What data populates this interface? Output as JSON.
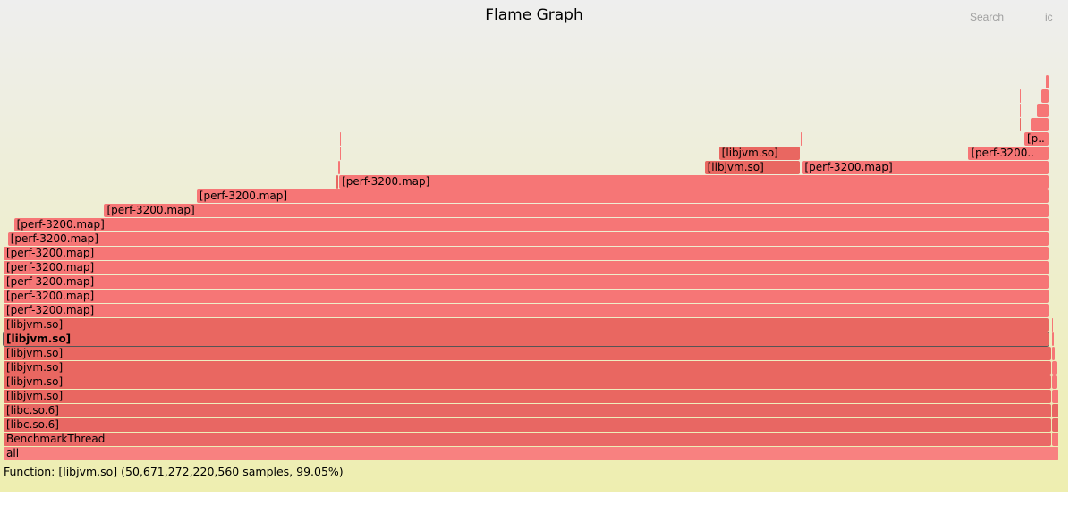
{
  "title": "Flame Graph",
  "controls": {
    "search": "Search",
    "ic": "ic"
  },
  "details": "Function: [libjvm.so] (50,671,272,220,560 samples, 99.05%)",
  "colors": {
    "bg_top": "#eeeeee",
    "bg_bottom": "#eeeeb0",
    "root": "#f88180",
    "libc": "#e86763",
    "libjvm": "#e96761",
    "perf": "#f67676",
    "thread": "#ea6866"
  },
  "frames": [
    {
      "label": "all",
      "row": 0,
      "x0": 0.0,
      "x1": 1.0,
      "kind": "root"
    },
    {
      "label": "BenchmarkThread",
      "row": 1,
      "x0": 0.0,
      "x1": 0.9932,
      "kind": "thread"
    },
    {
      "label": "[libc.so.6]",
      "row": 2,
      "x0": 0.0,
      "x1": 0.9932,
      "kind": "libc"
    },
    {
      "label": "[libc.so.6]",
      "row": 3,
      "x0": 0.0,
      "x1": 0.9932,
      "kind": "libc"
    },
    {
      "label": "[libjvm.so]",
      "row": 4,
      "x0": 0.0,
      "x1": 0.9932,
      "kind": "libjvm"
    },
    {
      "label": "[libjvm.so]",
      "row": 5,
      "x0": 0.0,
      "x1": 0.9932,
      "kind": "libjvm"
    },
    {
      "label": "[libjvm.so]",
      "row": 6,
      "x0": 0.0,
      "x1": 0.9932,
      "kind": "libjvm"
    },
    {
      "label": "[libjvm.so]",
      "row": 7,
      "x0": 0.0,
      "x1": 0.9932,
      "kind": "libjvm"
    },
    {
      "label": "[libjvm.so]",
      "row": 8,
      "x0": 0.0,
      "x1": 0.9905,
      "kind": "libjvm",
      "highlight": true
    },
    {
      "label": "[libjvm.so]",
      "row": 9,
      "x0": 0.0,
      "x1": 0.9905,
      "kind": "libjvm"
    },
    {
      "label": "[perf-3200.map]",
      "row": 10,
      "x0": 0.0,
      "x1": 0.9905,
      "kind": "perf"
    },
    {
      "label": "[perf-3200.map]",
      "row": 11,
      "x0": 0.0,
      "x1": 0.9905,
      "kind": "perf"
    },
    {
      "label": "[perf-3200.map]",
      "row": 12,
      "x0": 0.0,
      "x1": 0.9905,
      "kind": "perf"
    },
    {
      "label": "[perf-3200.map]",
      "row": 13,
      "x0": 0.0,
      "x1": 0.9905,
      "kind": "perf"
    },
    {
      "label": "[perf-3200.map]",
      "row": 14,
      "x0": 0.0,
      "x1": 0.9905,
      "kind": "perf"
    },
    {
      "label": "[perf-3200.map]",
      "row": 15,
      "x0": 0.004,
      "x1": 0.9905,
      "kind": "perf"
    },
    {
      "label": "[perf-3200.map]",
      "row": 16,
      "x0": 0.0098,
      "x1": 0.9905,
      "kind": "perf"
    },
    {
      "label": "[perf-3200.map]",
      "row": 17,
      "x0": 0.0953,
      "x1": 0.9905,
      "kind": "perf"
    },
    {
      "label": "[perf-3200.map]",
      "row": 18,
      "x0": 0.1829,
      "x1": 0.9905,
      "kind": "perf"
    },
    {
      "label": "[perf-3200.map]",
      "row": 19,
      "x0": 0.3179,
      "x1": 0.9905,
      "kind": "perf"
    },
    {
      "label": "[libjvm.so]",
      "row": 20,
      "x0": 0.6641,
      "x1": 0.7555,
      "kind": "libjvm"
    },
    {
      "label": "[perf-3200.map]",
      "row": 20,
      "x0": 0.7563,
      "x1": 0.9905,
      "kind": "perf"
    },
    {
      "label": "[libjvm.so]",
      "row": 21,
      "x0": 0.6777,
      "x1": 0.7555,
      "kind": "libjvm"
    },
    {
      "label": "[perf-3200..",
      "row": 21,
      "x0": 0.9138,
      "x1": 0.9905,
      "kind": "perf"
    },
    {
      "label": "[p..",
      "row": 22,
      "x0": 0.9669,
      "x1": 0.9905,
      "kind": "perf"
    },
    {
      "label": "",
      "row": 23,
      "x0": 0.9728,
      "x1": 0.9905,
      "kind": "perf"
    },
    {
      "label": "",
      "row": 24,
      "x0": 0.9787,
      "x1": 0.9905,
      "kind": "perf"
    },
    {
      "label": "",
      "row": 25,
      "x0": 0.9829,
      "x1": 0.9905,
      "kind": "perf"
    },
    {
      "label": "",
      "row": 26,
      "x0": 0.9872,
      "x1": 0.9905,
      "kind": "perf"
    },
    {
      "label": "",
      "row": 19,
      "x0": 0.3154,
      "x1": 0.3179,
      "kind": "libjvm"
    },
    {
      "label": "",
      "row": 20,
      "x0": 0.3166,
      "x1": 0.3197,
      "kind": "perf"
    },
    {
      "label": "",
      "row": 21,
      "x0": 0.3188,
      "x1": 0.3197,
      "kind": "perf"
    },
    {
      "label": "",
      "row": 22,
      "x0": 0.3188,
      "x1": 0.3197,
      "kind": "perf"
    },
    {
      "label": "",
      "row": 22,
      "x0": 0.7555,
      "x1": 0.7565,
      "kind": "perf"
    },
    {
      "label": "",
      "row": 23,
      "x0": 0.9626,
      "x1": 0.9643,
      "kind": "libjvm"
    },
    {
      "label": "",
      "row": 24,
      "x0": 0.9626,
      "x1": 0.9643,
      "kind": "perf"
    },
    {
      "label": "",
      "row": 25,
      "x0": 0.9626,
      "x1": 0.9643,
      "kind": "perf"
    },
    {
      "label": "",
      "row": 1,
      "x0": 0.9935,
      "x1": 1.0,
      "kind": "perf"
    },
    {
      "label": "",
      "row": 2,
      "x0": 0.9935,
      "x1": 1.0,
      "kind": "libc"
    },
    {
      "label": "",
      "row": 3,
      "x0": 0.9935,
      "x1": 1.0,
      "kind": "libc"
    },
    {
      "label": "",
      "row": 4,
      "x0": 0.9935,
      "x1": 1.0,
      "kind": "perf"
    },
    {
      "label": "",
      "row": 5,
      "x0": 0.9935,
      "x1": 0.9987,
      "kind": "perf"
    },
    {
      "label": "",
      "row": 6,
      "x0": 0.9935,
      "x1": 0.998,
      "kind": "perf"
    },
    {
      "label": "",
      "row": 7,
      "x0": 0.9935,
      "x1": 0.997,
      "kind": "perf"
    },
    {
      "label": "",
      "row": 8,
      "x0": 0.9935,
      "x1": 0.9955,
      "kind": "perf"
    },
    {
      "label": "",
      "row": 9,
      "x0": 0.9935,
      "x1": 0.995,
      "kind": "perf"
    }
  ]
}
